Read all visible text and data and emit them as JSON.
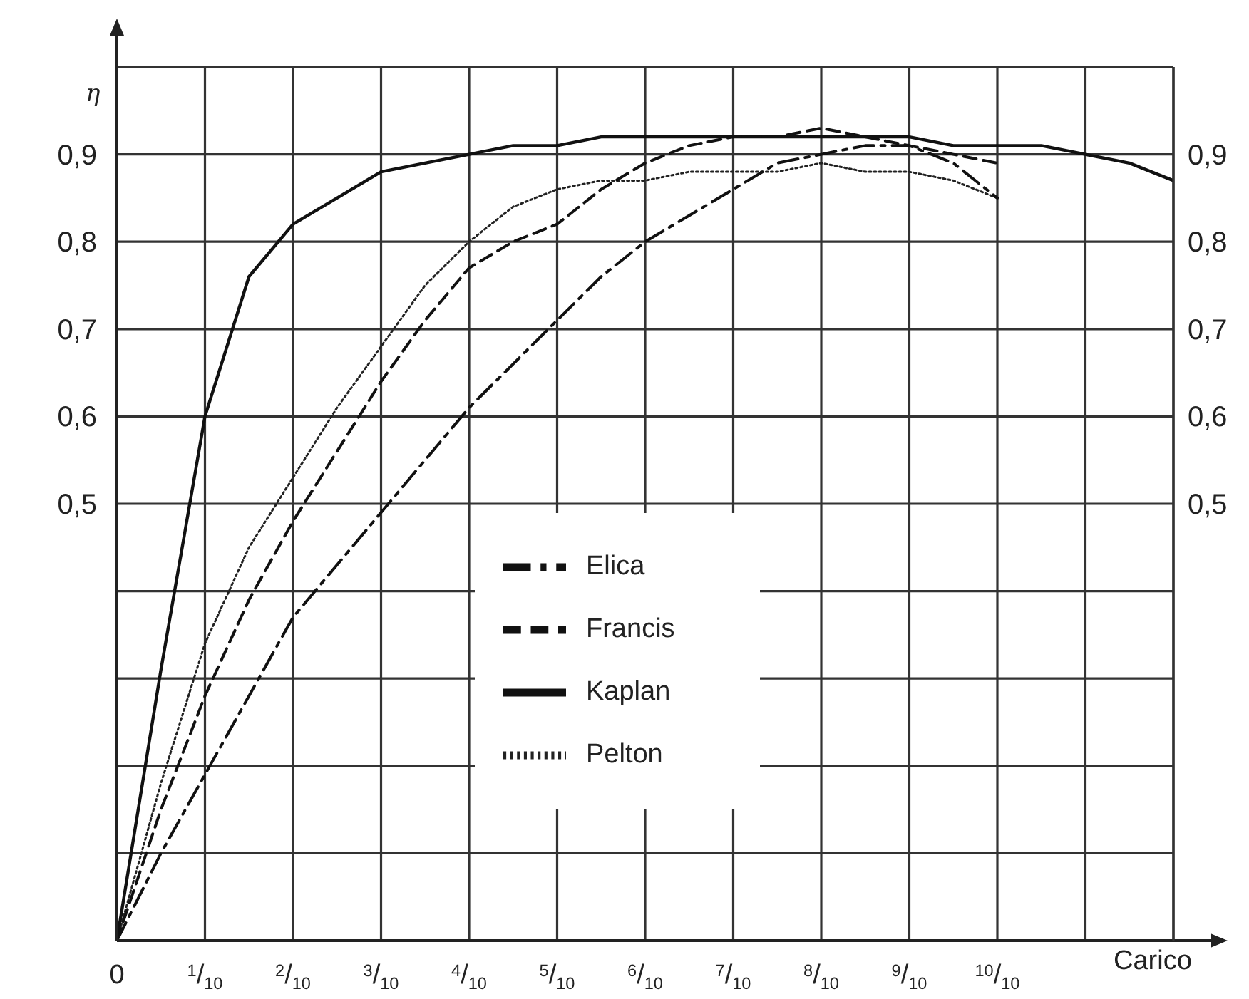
{
  "chart_data": {
    "type": "line",
    "ylabel": "η",
    "xlabel": "Carico",
    "categories": [
      "0",
      null,
      "$^{1}$/$_{10}$",
      null,
      "$^{2}$/$_{10}$",
      null,
      "$^{3}$/$_{10}$",
      null,
      "$^{4}$/$_{10}$",
      null,
      "$^{5}$/$_{10}$",
      null,
      "$^{6}$/$_{10}$",
      null,
      "$^{7}$/$_{10}$",
      null,
      "$^{8}$/$_{10}$",
      null,
      "$^{9}$/$_{10}$",
      null,
      "$^{10}$/$_{10}$",
      null,
      null,
      null,
      null
    ],
    "ylim": [
      0,
      1.0
    ],
    "y2lim": [
      0,
      1.0
    ],
    "yticks": [
      {
        "value": 0,
        "label": null
      },
      {
        "value": 0.1,
        "label": null
      },
      {
        "value": 0.2,
        "label": null
      },
      {
        "value": 0.3,
        "label": null
      },
      {
        "value": 0.4,
        "label": null
      },
      {
        "value": 0.5,
        "label": "0,5"
      },
      {
        "value": 0.6,
        "label": "0,6"
      },
      {
        "value": 0.7,
        "label": "0,7"
      },
      {
        "value": 0.8,
        "label": "0,8"
      },
      {
        "value": 0.9,
        "label": "0,9"
      },
      {
        "value": 1.0,
        "label": null
      }
    ],
    "y2ticks": [
      {
        "value": 0,
        "label": null
      },
      {
        "value": 0.1,
        "label": null
      },
      {
        "value": 0.2,
        "label": null
      },
      {
        "value": 0.3,
        "label": null
      },
      {
        "value": 0.4,
        "label": null
      },
      {
        "value": 0.5,
        "label": "0,5"
      },
      {
        "value": 0.6,
        "label": "0,6"
      },
      {
        "value": 0.7,
        "label": "0,7"
      },
      {
        "value": 0.8,
        "label": "0,8"
      },
      {
        "value": 0.9,
        "label": "0,9"
      },
      {
        "value": 1.0,
        "label": null
      }
    ],
    "grid": true,
    "legend": "bottom",
    "marker": "none",
    "series": [
      {
        "name": "Pelton",
        "color": "#222222",
        "line_style": "dotted",
        "values": [
          0,
          0.18,
          0.34,
          0.45,
          0.53,
          0.61,
          0.68,
          0.75,
          0.8,
          0.84,
          0.86,
          0.87,
          0.87,
          0.88,
          0.88,
          0.88,
          0.89,
          0.88,
          0.88,
          0.87,
          0.85,
          null,
          null,
          null,
          null
        ]
      },
      {
        "name": "Kaplan",
        "color": "#111111",
        "line_style": "solid",
        "values": [
          0,
          0.31,
          0.6,
          0.76,
          0.82,
          0.85,
          0.88,
          0.89,
          0.9,
          0.91,
          0.91,
          0.92,
          0.92,
          0.92,
          0.92,
          0.92,
          0.92,
          0.92,
          0.92,
          0.91,
          0.91,
          0.91,
          0.9,
          0.89,
          0.87
        ]
      },
      {
        "name": "Francis",
        "color": "#111111",
        "line_style": "dashed",
        "values": [
          0,
          0.15,
          0.28,
          0.39,
          0.48,
          0.56,
          0.64,
          0.71,
          0.77,
          0.8,
          0.82,
          0.86,
          0.89,
          0.91,
          0.92,
          0.92,
          0.93,
          0.92,
          0.91,
          0.9,
          0.89,
          null,
          null,
          null,
          null
        ]
      },
      {
        "name": "Elica",
        "color": "#111111",
        "line_style": "dashdot",
        "values": [
          0,
          0.1,
          0.19,
          0.28,
          0.37,
          0.43,
          0.49,
          0.55,
          0.61,
          0.66,
          0.71,
          0.76,
          0.8,
          0.83,
          0.86,
          0.89,
          0.9,
          0.91,
          0.91,
          0.89,
          0.85,
          null,
          null,
          null,
          null
        ]
      }
    ]
  }
}
